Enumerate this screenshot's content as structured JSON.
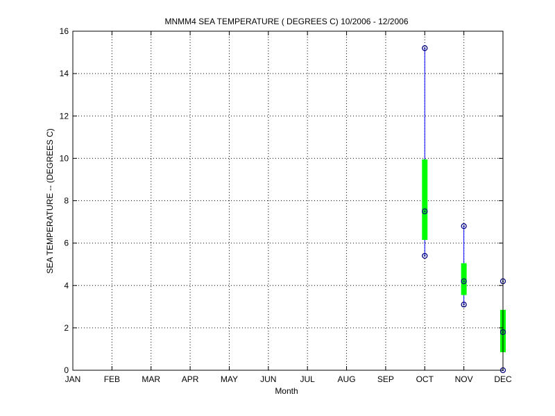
{
  "chart_data": {
    "type": "box",
    "title": "MNMM4  SEA TEMPERATURE ( DEGREES C) 10/2006 - 12/2006",
    "xlabel": "Month",
    "ylabel": "SEA TEMPERATURE -- (DEGREES C)",
    "categories": [
      "JAN",
      "FEB",
      "MAR",
      "APR",
      "MAY",
      "JUN",
      "JUL",
      "AUG",
      "SEP",
      "OCT",
      "NOV",
      "DEC"
    ],
    "ylim": [
      0,
      16
    ],
    "yticks": [
      0,
      2,
      4,
      6,
      8,
      10,
      12,
      14,
      16
    ],
    "grid": "dotted",
    "boxes": [
      {
        "category": "OCT",
        "min": 5.4,
        "q1": 6.15,
        "median": 7.5,
        "q3": 9.95,
        "max": 15.2
      },
      {
        "category": "NOV",
        "min": 3.1,
        "q1": 3.55,
        "median": 4.2,
        "q3": 5.05,
        "max": 6.8
      },
      {
        "category": "DEC",
        "min": 0.0,
        "q1": 0.85,
        "median": 1.8,
        "q3": 2.85,
        "max": 4.2
      }
    ],
    "colors": {
      "whisker": "#0000ff",
      "box": "#00ff00",
      "marker": "#00007f",
      "axis": "#000000",
      "grid": "#000000"
    }
  }
}
